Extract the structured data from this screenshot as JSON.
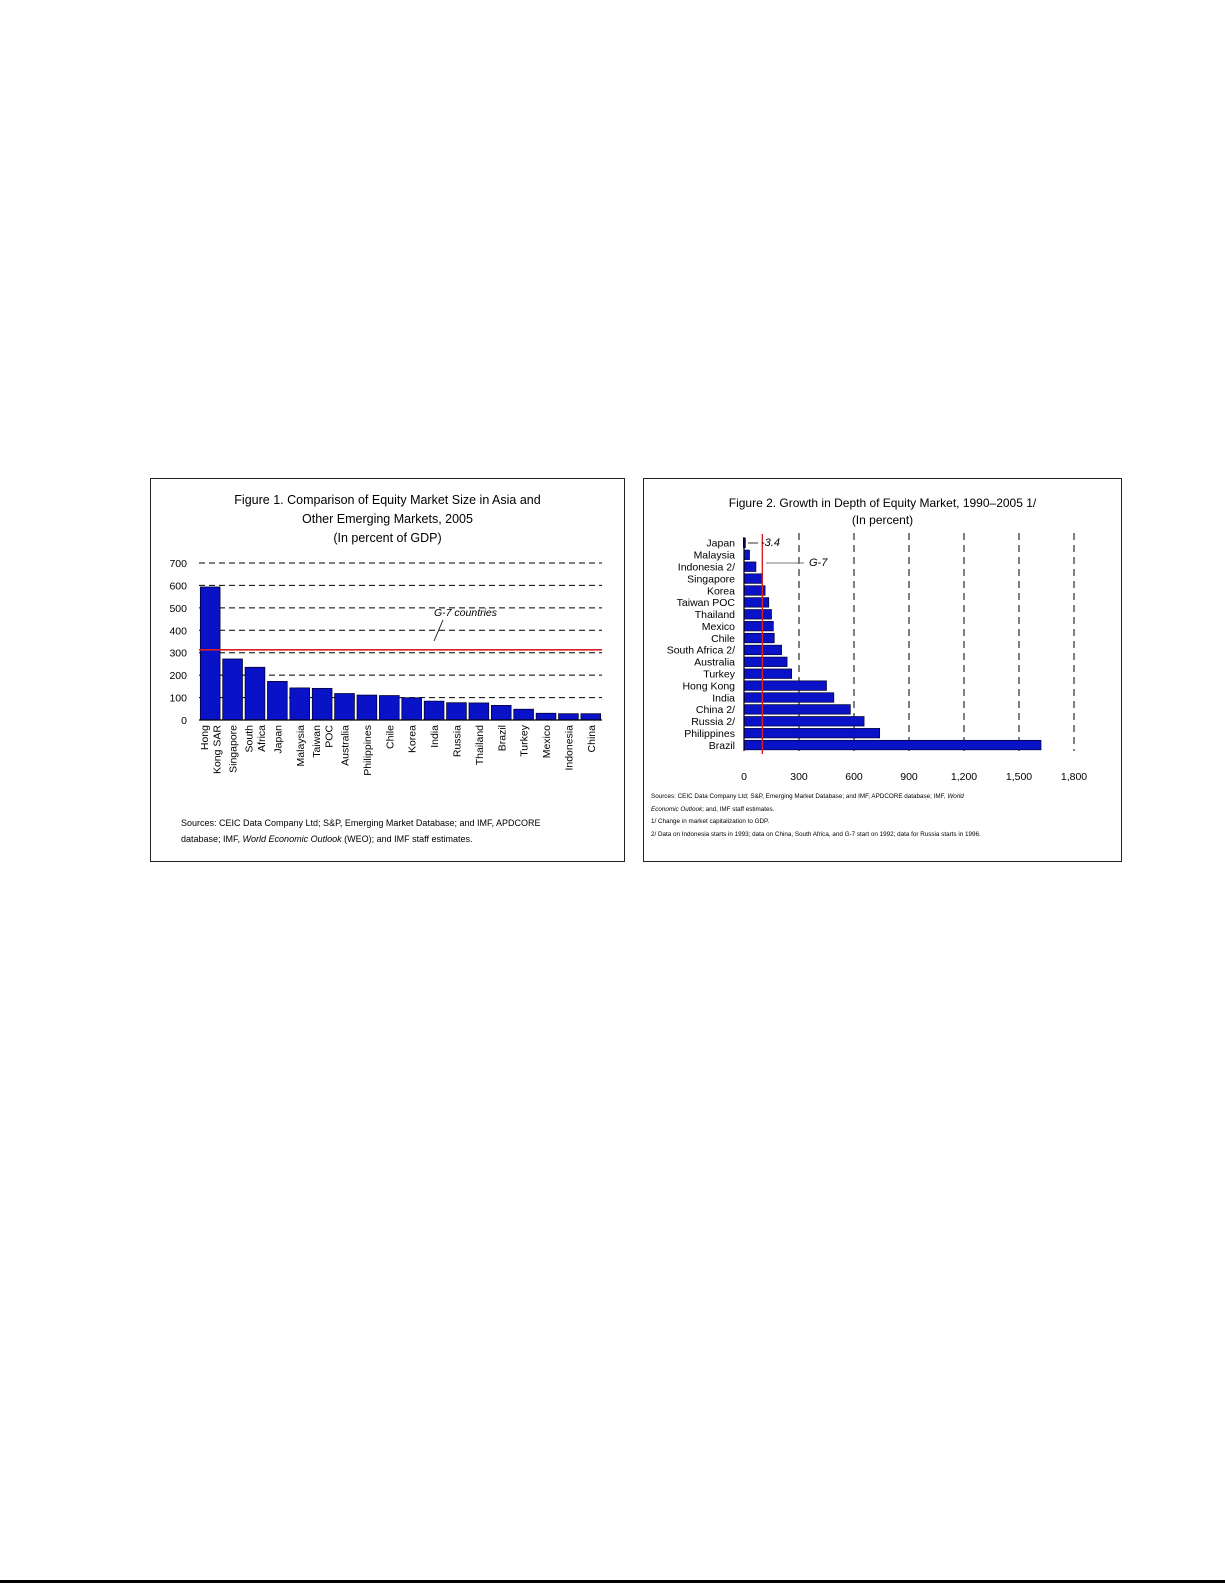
{
  "colors": {
    "bar_fill": "#0a12c8",
    "bar_edge": "#000033",
    "reference_line": "#d92020",
    "gridline": "#000000"
  },
  "figure1": {
    "title_line1": "Figure 1. Comparison of Equity Market Size in Asia and",
    "title_line2": "Other Emerging Markets, 2005",
    "subtitle": "(In percent of GDP)",
    "annotation": "G-7 countries",
    "sources": {
      "line1": "Sources: CEIC Data Company Ltd; S&P, Emerging Market Database; and IMF, APDCORE",
      "line2_a": "database; IMF, ",
      "line2_em": "World Economic Outlook",
      "line2_b": " (WEO); and IMF staff estimates."
    },
    "chart_data": {
      "type": "bar",
      "orientation": "vertical",
      "categories": [
        "Hong Kong SAR",
        "Singapore",
        "South Africa",
        "Japan",
        "Malaysia",
        "Taiwan POC",
        "Australia",
        "Philippines",
        "Chile",
        "Korea",
        "India",
        "Russia",
        "Thailand",
        "Brazil",
        "Turkey",
        "Mexico",
        "Indonesia",
        "China"
      ],
      "category_label_lines": [
        [
          "Hong",
          "Kong SAR"
        ],
        [
          "Singapore"
        ],
        [
          "South",
          "Africa"
        ],
        [
          "Japan"
        ],
        [
          "Malaysia"
        ],
        [
          "Taiwan",
          "POC"
        ],
        [
          "Australia"
        ],
        [
          "Philippines"
        ],
        [
          "Chile"
        ],
        [
          "Korea"
        ],
        [
          "India"
        ],
        [
          "Russia"
        ],
        [
          "Thailand"
        ],
        [
          "Brazil"
        ],
        [
          "Turkey"
        ],
        [
          "Mexico"
        ],
        [
          "Indonesia"
        ],
        [
          "China"
        ]
      ],
      "values": [
        593,
        272,
        235,
        172,
        143,
        141,
        118,
        111,
        109,
        99,
        84,
        77,
        76,
        65,
        48,
        30,
        28,
        28
      ],
      "reference_line": {
        "value": 313
      },
      "ylim": [
        0,
        700
      ],
      "yticks": [
        0,
        100,
        200,
        300,
        400,
        500,
        600,
        700
      ],
      "ytick_labels": [
        "0",
        "100",
        "200",
        "300",
        "400",
        "500",
        "600",
        "700"
      ],
      "grid": "dashed horizontal",
      "legend": "none",
      "xlabel": "",
      "ylabel": ""
    }
  },
  "figure2": {
    "title": "Figure 2. Growth in Depth of Equity Market, 1990–2005 1/",
    "subtitle": "(In percent)",
    "annotation_value": "-3.4",
    "annotation_g7": "G-7",
    "sources": {
      "line1_a": "Sources: CEIC Data Company Ltd; S&P, Emerging Market Database; and IMF, APDCORE database; IMF, ",
      "line1_em": "World",
      "line2_em": "Economic Outlook",
      "line2_b": "; and, IMF staff estimates.",
      "note1": "1/ Change in market capitalization to GDP.",
      "note2": "2/ Data on Indonesia starts in 1993; data on China, South Africa, and G-7 start on 1992; data for Russia starts in 1996."
    },
    "chart_data": {
      "type": "bar",
      "orientation": "horizontal",
      "categories": [
        "Japan",
        "Malaysia",
        "Indonesia 2/",
        "Singapore",
        "Korea",
        "Taiwan POC",
        "Thailand",
        "Mexico",
        "Chile",
        "South Africa 2/",
        "Australia",
        "Turkey",
        "Hong Kong",
        "India",
        "China 2/",
        "Russia 2/",
        "Philippines",
        "Brazil"
      ],
      "values": [
        -3.4,
        30,
        65,
        100,
        115,
        135,
        150,
        160,
        165,
        205,
        235,
        260,
        450,
        490,
        580,
        655,
        740,
        1620
      ],
      "reference_line": {
        "name": "G-7",
        "value": 100
      },
      "xlim": [
        0,
        1800
      ],
      "xticks": [
        0,
        300,
        600,
        900,
        1200,
        1500,
        1800
      ],
      "xtick_labels": [
        "0",
        "300",
        "600",
        "900",
        "1,200",
        "1,500",
        "1,800"
      ],
      "grid": "dashed vertical",
      "legend": "none",
      "xlabel": "",
      "ylabel": ""
    }
  }
}
